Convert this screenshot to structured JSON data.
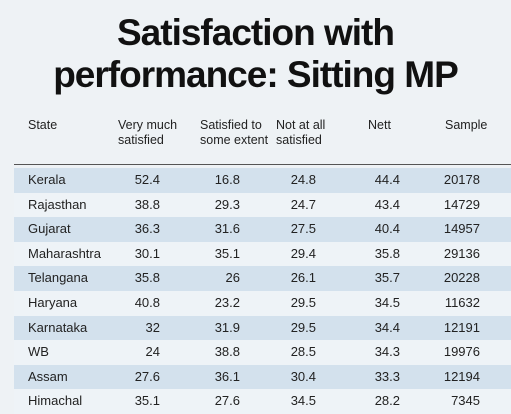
{
  "title_lines": [
    "Satisfaction with",
    "performance: Sitting MP"
  ],
  "table": {
    "columns": [
      "State",
      "Very much satisfied",
      "Satisfied to some extent",
      "Not at all satisfied",
      "Nett",
      "Sample"
    ],
    "rows": [
      [
        "Kerala",
        52.4,
        16.8,
        24.8,
        44.4,
        20178
      ],
      [
        "Rajasthan",
        38.8,
        29.3,
        24.7,
        43.4,
        14729
      ],
      [
        "Gujarat",
        36.3,
        31.6,
        27.5,
        40.4,
        14957
      ],
      [
        "Maharashtra",
        30.1,
        35.1,
        29.4,
        35.8,
        29136
      ],
      [
        "Telangana",
        35.8,
        26,
        26.1,
        35.7,
        20228
      ],
      [
        "Haryana",
        40.8,
        23.2,
        29.5,
        34.5,
        11632
      ],
      [
        "Karnataka",
        32,
        31.9,
        29.5,
        34.4,
        12191
      ],
      [
        "WB",
        24,
        38.8,
        28.5,
        34.3,
        19976
      ],
      [
        "Assam",
        27.6,
        36.1,
        30.4,
        33.3,
        12194
      ],
      [
        "Himachal",
        35.1,
        27.6,
        34.5,
        28.2,
        7345
      ]
    ]
  }
}
